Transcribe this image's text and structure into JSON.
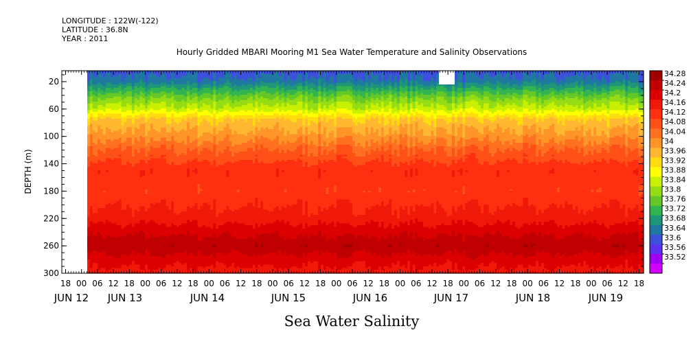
{
  "header": {
    "longitude": "LONGITUDE : 122W(-122)",
    "latitude": "LATITUDE : 36.8N",
    "year": "YEAR : 2011"
  },
  "chart_data": {
    "type": "heatmap",
    "title": "Hourly Gridded MBARI Mooring M1 Sea Water Temperature and Salinity Observations",
    "caption": "Sea Water Salinity",
    "ylabel": "DEPTH (m)",
    "x_hour_ticks": [
      "18",
      "00",
      "06",
      "12",
      "18",
      "00",
      "06",
      "12",
      "18",
      "00",
      "06",
      "12",
      "18",
      "00",
      "06",
      "12",
      "18",
      "00",
      "06",
      "12",
      "18",
      "00",
      "06",
      "12",
      "18",
      "00",
      "06",
      "12",
      "18",
      "00",
      "06",
      "12",
      "18",
      "00",
      "06",
      "12",
      "18"
    ],
    "x_date_labels": [
      "JUN 12",
      "JUN 13",
      "JUN 14",
      "JUN 15",
      "JUN 16",
      "JUN 17",
      "JUN 18",
      "JUN 19"
    ],
    "y_ticks": [
      20,
      60,
      100,
      140,
      180,
      220,
      260,
      300
    ],
    "ylim": [
      300,
      4
    ],
    "colorbar_levels": [
      34.28,
      34.24,
      34.2,
      34.16,
      34.12,
      34.08,
      34.04,
      34,
      33.96,
      33.92,
      33.88,
      33.84,
      33.8,
      33.76,
      33.72,
      33.68,
      33.64,
      33.6,
      33.56,
      33.52
    ],
    "colorbar_colors": [
      "#a00000",
      "#c00000",
      "#dc0000",
      "#f01808",
      "#ff3010",
      "#ff5018",
      "#ff7020",
      "#ff9428",
      "#ffb830",
      "#ffdc10",
      "#ffff00",
      "#c8f000",
      "#96dc14",
      "#64c828",
      "#32b450",
      "#1e9678",
      "#1e78a0",
      "#3c50dc",
      "#5a32f0",
      "#a000f0",
      "#d200ff"
    ],
    "profile": [
      {
        "depth": 4,
        "value": 33.62
      },
      {
        "depth": 20,
        "value": 33.66
      },
      {
        "depth": 30,
        "value": 33.72
      },
      {
        "depth": 45,
        "value": 33.8
      },
      {
        "depth": 60,
        "value": 33.86
      },
      {
        "depth": 75,
        "value": 33.96
      },
      {
        "depth": 100,
        "value": 34.02
      },
      {
        "depth": 120,
        "value": 34.08
      },
      {
        "depth": 150,
        "value": 34.15
      },
      {
        "depth": 180,
        "value": 34.13
      },
      {
        "depth": 220,
        "value": 34.18
      },
      {
        "depth": 245,
        "value": 34.24
      },
      {
        "depth": 260,
        "value": 34.27
      },
      {
        "depth": 280,
        "value": 34.22
      },
      {
        "depth": 300,
        "value": 34.18
      }
    ],
    "grid": false
  }
}
